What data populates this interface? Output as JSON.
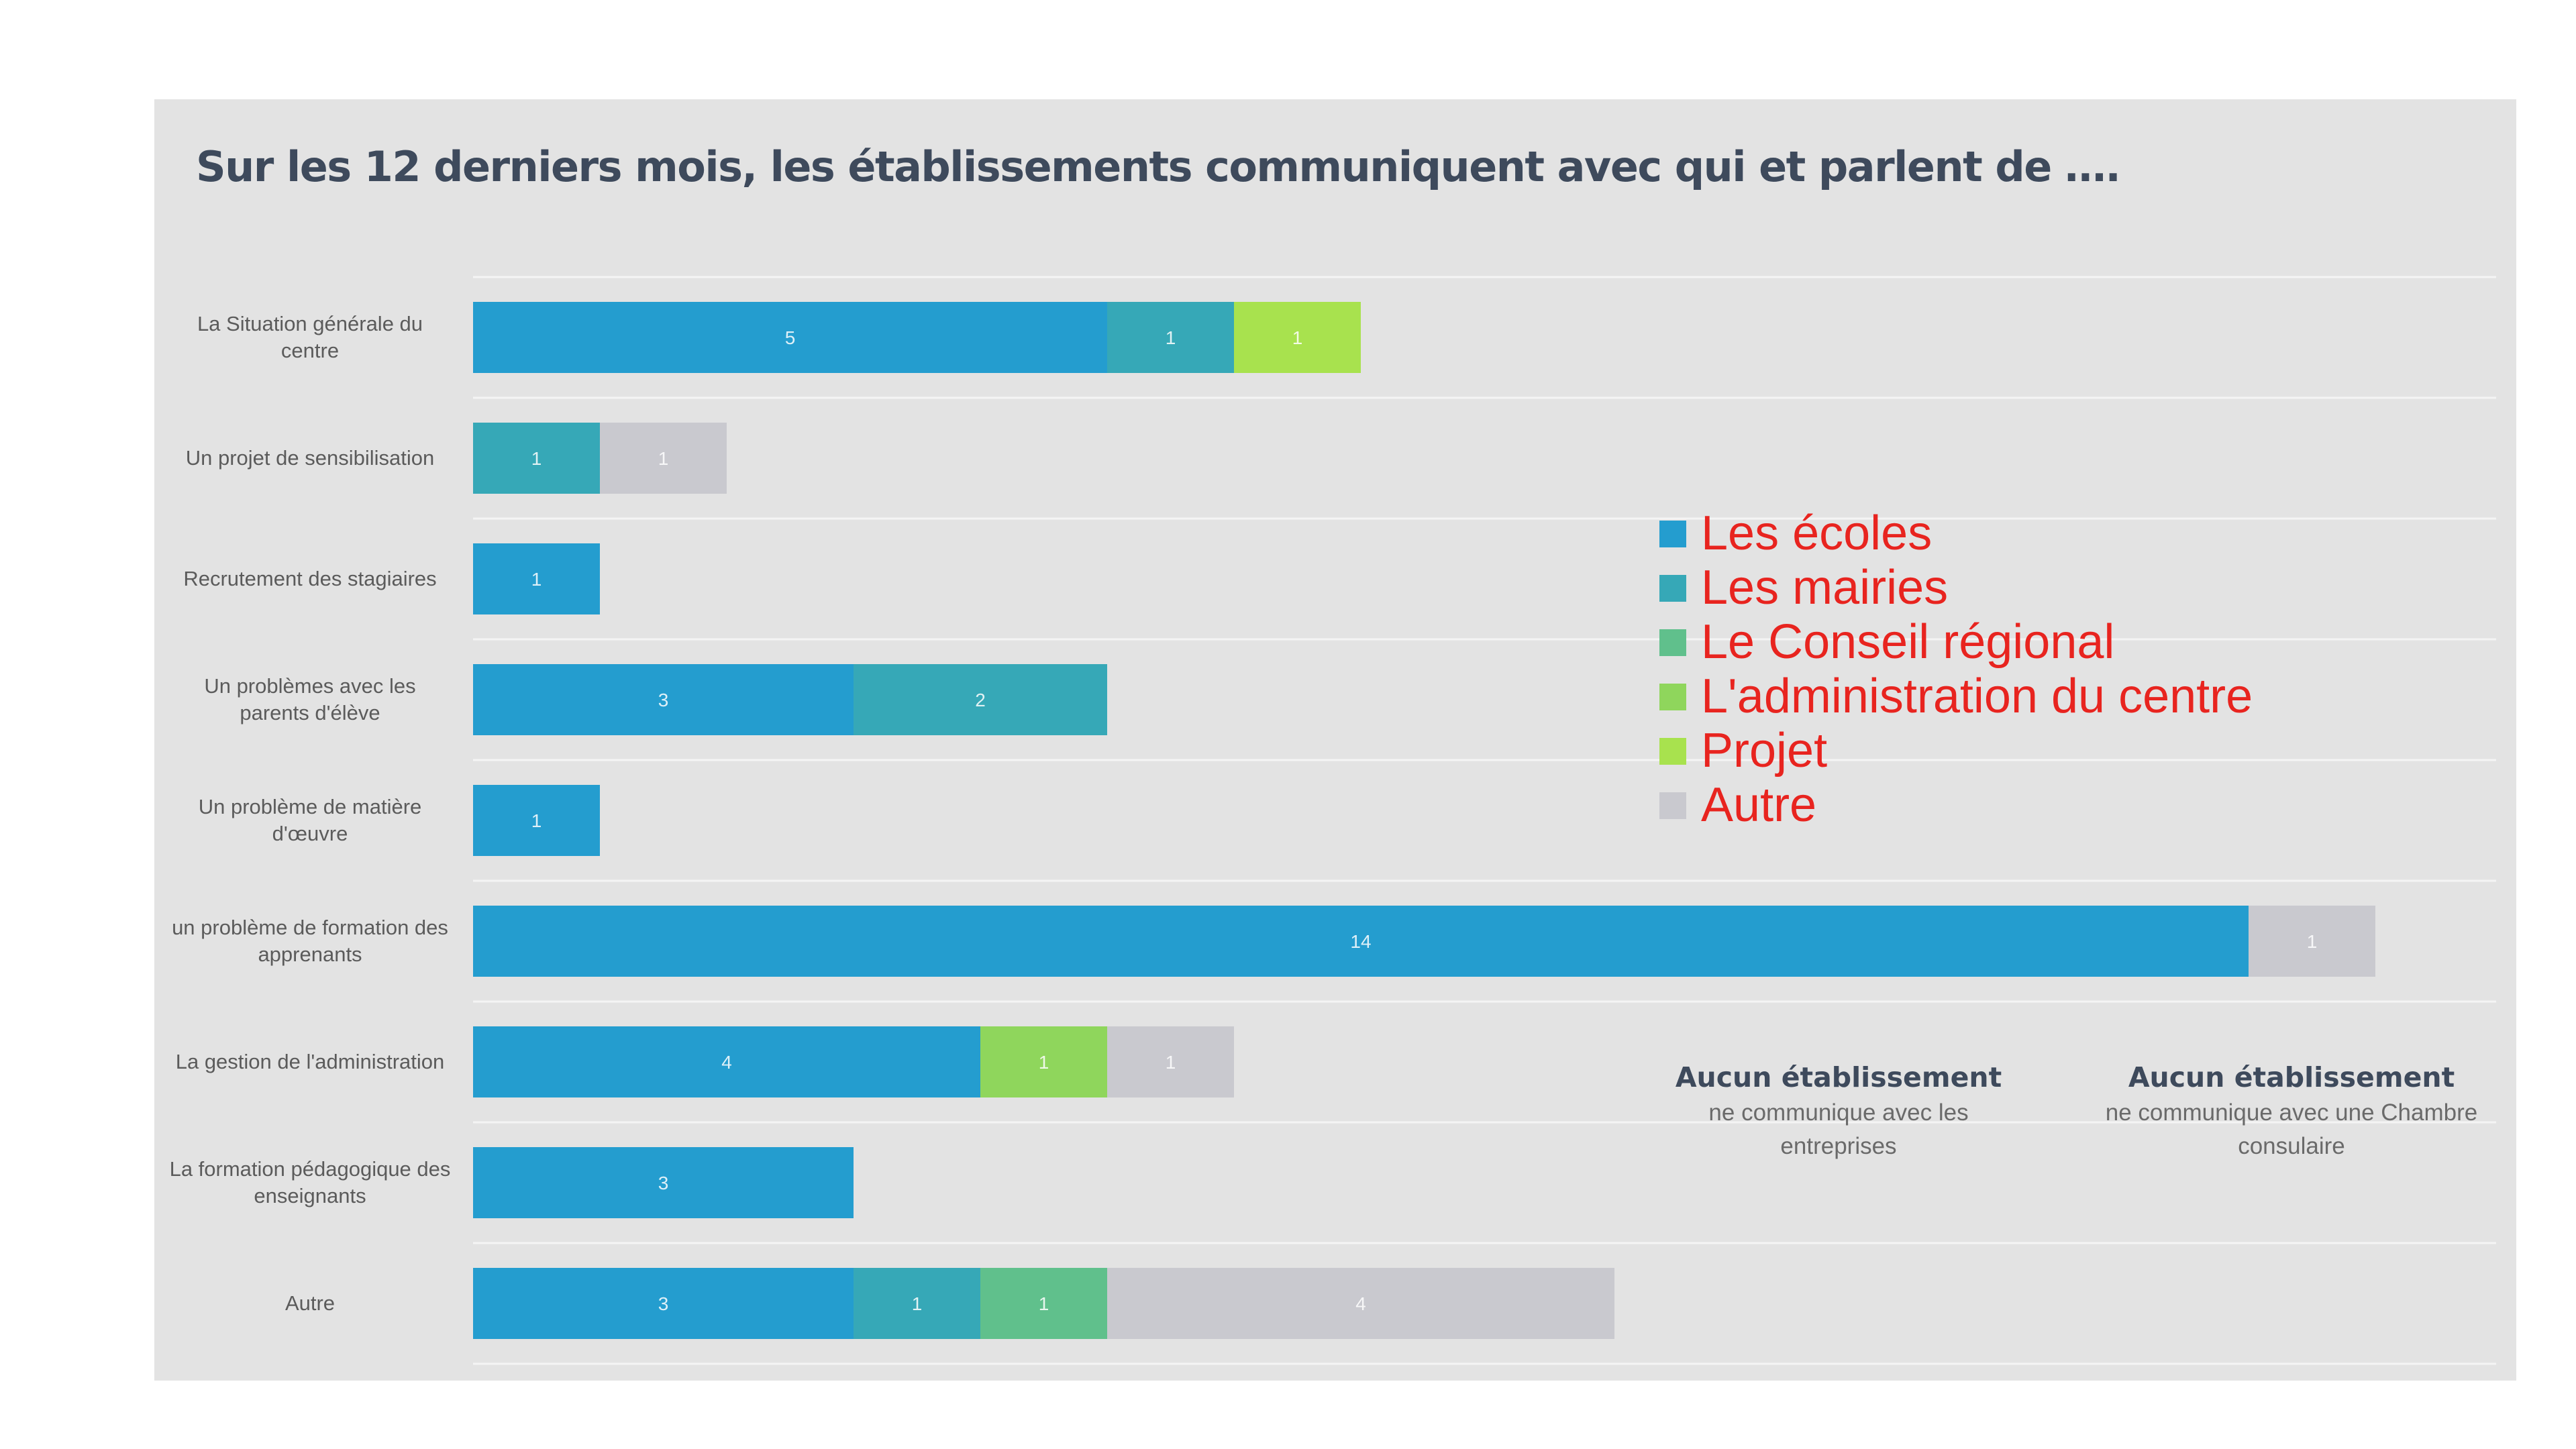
{
  "title": "Sur les 12 derniers mois, les établissements communiquent avec qui et parlent de ….",
  "colors": {
    "Les écoles": "#249dcf",
    "Les mairies": "#36a8b7",
    "Le Conseil régional": "#60c08c",
    "L'administration du centre": "#8fd65c",
    "Projet": "#a8e24e",
    "Autre": "#c9c9cf"
  },
  "legend": [
    "Les écoles",
    "Les mairies",
    "Le Conseil régional",
    "L'administration du centre",
    "Projet",
    "Autre"
  ],
  "notes": [
    {
      "title": "Aucun établissement",
      "text": "ne communique avec les entreprises"
    },
    {
      "title": "Aucun établissement",
      "text": "ne communique avec une Chambre consulaire"
    }
  ],
  "chart_data": {
    "type": "bar",
    "orientation": "horizontal",
    "stacked": true,
    "title": "Sur les 12 derniers mois, les établissements communiquent avec qui et parlent de ….",
    "categories": [
      "La Situation générale du centre",
      "Un projet de sensibilisation",
      "Recrutement des stagiaires",
      "Un problèmes avec les parents d'élève",
      "Un problème de matière d'œuvre",
      "un problème de formation des apprenants",
      "La gestion de l'administration",
      "La formation pédagogique des enseignants",
      "Autre"
    ],
    "series": [
      {
        "name": "Les écoles",
        "values": [
          5,
          0,
          1,
          3,
          1,
          14,
          4,
          3,
          3
        ]
      },
      {
        "name": "Les mairies",
        "values": [
          1,
          1,
          0,
          2,
          0,
          0,
          0,
          0,
          1
        ]
      },
      {
        "name": "Le Conseil régional",
        "values": [
          0,
          0,
          0,
          0,
          0,
          0,
          0,
          0,
          1
        ]
      },
      {
        "name": "L'administration du centre",
        "values": [
          0,
          0,
          0,
          0,
          0,
          0,
          1,
          0,
          0
        ]
      },
      {
        "name": "Projet",
        "values": [
          1,
          0,
          0,
          0,
          0,
          0,
          0,
          0,
          0
        ]
      },
      {
        "name": "Autre",
        "values": [
          0,
          1,
          0,
          0,
          0,
          1,
          1,
          0,
          4
        ]
      }
    ],
    "xlim": [
      0,
      16
    ],
    "grid": true,
    "legend_position": "right"
  }
}
